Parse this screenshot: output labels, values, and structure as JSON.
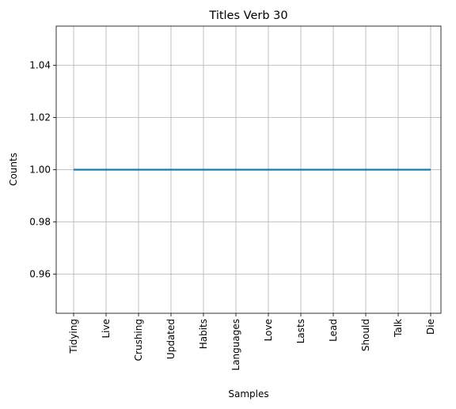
{
  "chart_data": {
    "type": "line",
    "title": "Titles Verb 30",
    "xlabel": "Samples",
    "ylabel": "Counts",
    "categories": [
      "Tidying",
      "Live",
      "Crushing",
      "Updated",
      "Habits",
      "Languages",
      "Love",
      "Lasts",
      "Lead",
      "Should",
      "Talk",
      "Die"
    ],
    "series": [
      {
        "values": [
          1,
          1,
          1,
          1,
          1,
          1,
          1,
          1,
          1,
          1,
          1,
          1
        ],
        "color": "#1f77b4"
      }
    ],
    "ylim": [
      0.945,
      1.055
    ],
    "yticks": [
      "0.96",
      "0.98",
      "1.00",
      "1.02",
      "1.04"
    ],
    "grid": true,
    "legend": "none"
  }
}
